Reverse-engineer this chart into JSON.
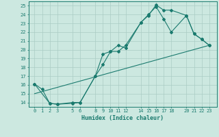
{
  "title": "",
  "xlabel": "Humidex (Indice chaleur)",
  "bg_color": "#cce8e0",
  "grid_color": "#aaccC4",
  "line_color": "#1a7a6e",
  "xlim": [
    -0.8,
    24.0
  ],
  "ylim": [
    13.5,
    25.5
  ],
  "xticks": [
    0,
    1,
    2,
    3,
    5,
    6,
    8,
    9,
    10,
    11,
    12,
    14,
    15,
    16,
    17,
    18,
    20,
    21,
    22,
    23
  ],
  "yticks": [
    14,
    15,
    16,
    17,
    18,
    19,
    20,
    21,
    22,
    23,
    24,
    25
  ],
  "line1_x": [
    0,
    1,
    2,
    3,
    5,
    6,
    8,
    9,
    10,
    11,
    12,
    14,
    15,
    16,
    17,
    18,
    20,
    21,
    22,
    23
  ],
  "line1_y": [
    16.1,
    15.5,
    13.9,
    13.8,
    13.9,
    14.0,
    17.0,
    18.3,
    19.8,
    19.8,
    20.5,
    23.1,
    23.9,
    25.1,
    24.5,
    24.5,
    23.9,
    21.8,
    21.2,
    20.5
  ],
  "line2_x": [
    0,
    2,
    3,
    5,
    6,
    8,
    9,
    10,
    11,
    12,
    14,
    15,
    16,
    17,
    18,
    20,
    21,
    22,
    23
  ],
  "line2_y": [
    16.1,
    13.9,
    13.8,
    14.0,
    14.0,
    17.0,
    19.5,
    19.8,
    20.5,
    20.2,
    23.1,
    24.0,
    24.9,
    23.5,
    22.0,
    23.9,
    21.8,
    21.2,
    20.5
  ],
  "line3_x": [
    0,
    23
  ],
  "line3_y": [
    15.0,
    20.5
  ],
  "xlabel_fontsize": 6.0,
  "tick_fontsize": 5.0
}
